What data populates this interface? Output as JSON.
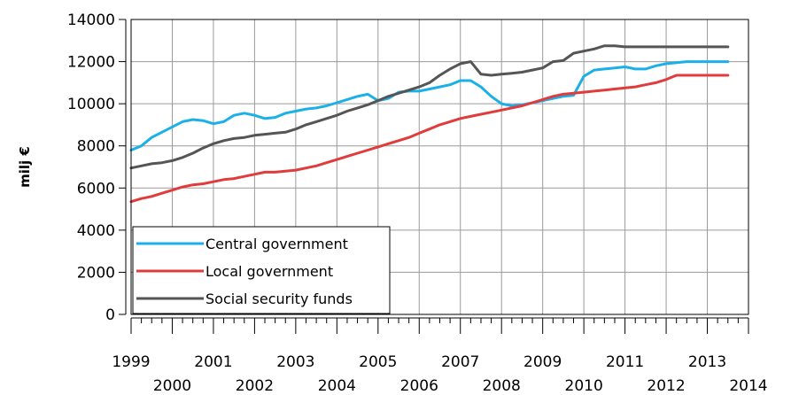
{
  "chart_data": {
    "type": "line",
    "title": "",
    "xlabel": "",
    "ylabel": "milj €",
    "xlim": [
      1999,
      2014
    ],
    "ylim": [
      0,
      14000
    ],
    "y_ticks": [
      0,
      2000,
      4000,
      6000,
      8000,
      10000,
      12000,
      14000
    ],
    "x_ticks_top_row": [
      "1999",
      "2001",
      "2003",
      "2005",
      "2007",
      "2009",
      "2011",
      "2013"
    ],
    "x_ticks_bottom_row": [
      "2000",
      "2002",
      "2004",
      "2006",
      "2008",
      "2010",
      "2012",
      "2014"
    ],
    "grid": true,
    "legend_position": "bottom-left",
    "x": [
      1999.0,
      1999.25,
      1999.5,
      1999.75,
      2000.0,
      2000.25,
      2000.5,
      2000.75,
      2001.0,
      2001.25,
      2001.5,
      2001.75,
      2002.0,
      2002.25,
      2002.5,
      2002.75,
      2003.0,
      2003.25,
      2003.5,
      2003.75,
      2004.0,
      2004.25,
      2004.5,
      2004.75,
      2005.0,
      2005.25,
      2005.5,
      2005.75,
      2006.0,
      2006.25,
      2006.5,
      2006.75,
      2007.0,
      2007.25,
      2007.5,
      2007.75,
      2008.0,
      2008.25,
      2008.5,
      2008.75,
      2009.0,
      2009.25,
      2009.5,
      2009.75,
      2010.0,
      2010.25,
      2010.5,
      2010.75,
      2011.0,
      2011.25,
      2011.5,
      2011.75,
      2012.0,
      2012.25,
      2012.5,
      2012.75,
      2013.0,
      2013.25,
      2013.5
    ],
    "series": [
      {
        "name": "Central government",
        "color": "#1cb0e8",
        "values": [
          7800,
          8000,
          8400,
          8650,
          8900,
          9150,
          9250,
          9200,
          9050,
          9150,
          9450,
          9550,
          9450,
          9300,
          9350,
          9550,
          9650,
          9750,
          9800,
          9900,
          10050,
          10200,
          10350,
          10450,
          10150,
          10250,
          10550,
          10600,
          10600,
          10700,
          10800,
          10900,
          11100,
          11100,
          10800,
          10350,
          10000,
          9900,
          9950,
          10050,
          10150,
          10250,
          10350,
          10400,
          11300,
          11600,
          11650,
          11700,
          11750,
          11650,
          11650,
          11800,
          11900,
          11950,
          12000,
          12000,
          12000,
          12000,
          12000
        ]
      },
      {
        "name": "Local government",
        "color": "#e03c3c",
        "values": [
          5350,
          5500,
          5600,
          5750,
          5900,
          6050,
          6150,
          6200,
          6300,
          6400,
          6450,
          6550,
          6650,
          6750,
          6750,
          6800,
          6850,
          6950,
          7050,
          7200,
          7350,
          7500,
          7650,
          7800,
          7950,
          8100,
          8250,
          8400,
          8600,
          8800,
          9000,
          9150,
          9300,
          9400,
          9500,
          9600,
          9700,
          9800,
          9900,
          10050,
          10200,
          10350,
          10450,
          10500,
          10550,
          10600,
          10650,
          10700,
          10750,
          10800,
          10900,
          11000,
          11150,
          11350,
          11350,
          11350,
          11350,
          11350,
          11350
        ]
      },
      {
        "name": "Social security funds",
        "color": "#555555",
        "values": [
          6950,
          7050,
          7150,
          7200,
          7300,
          7450,
          7650,
          7900,
          8100,
          8250,
          8350,
          8400,
          8500,
          8550,
          8600,
          8650,
          8800,
          9000,
          9150,
          9300,
          9450,
          9650,
          9800,
          9950,
          10150,
          10350,
          10500,
          10650,
          10800,
          11000,
          11350,
          11650,
          11900,
          12000,
          11400,
          11350,
          11400,
          11450,
          11500,
          11600,
          11700,
          12000,
          12050,
          12400,
          12500,
          12600,
          12750,
          12750,
          12700,
          12700,
          12700,
          12700,
          12700,
          12700,
          12700,
          12700,
          12700,
          12700,
          12700
        ]
      }
    ]
  }
}
